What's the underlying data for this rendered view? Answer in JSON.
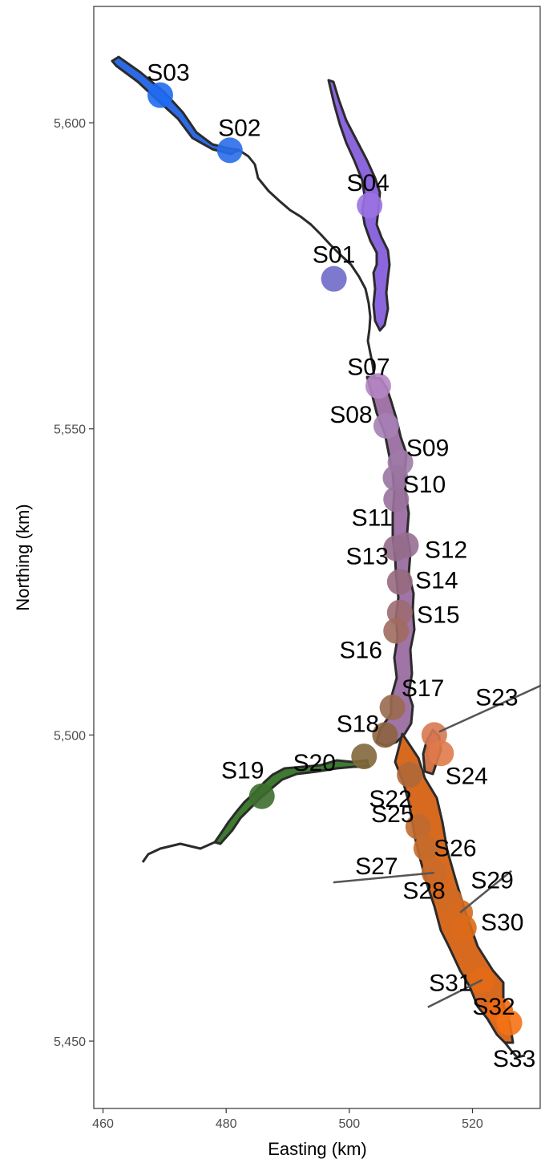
{
  "chart_data": {
    "type": "scatter",
    "xlabel": "Easting (km)",
    "ylabel": "Northing (km)",
    "xlim": [
      458.5,
      531
    ],
    "ylim": [
      5439,
      5619
    ],
    "x_ticks": [
      460,
      480,
      500,
      520
    ],
    "y_ticks": [
      5450,
      5500,
      5550,
      5600
    ],
    "y_tick_labels": [
      "5,450",
      "5,500",
      "5,550",
      "5,600"
    ],
    "grid": false,
    "legend": "none",
    "points": [
      {
        "label": "S01",
        "x": 497.5,
        "y": 5574.5,
        "color": "#6f6ac8"
      },
      {
        "label": "S02",
        "x": 480.6,
        "y": 5595.5,
        "color": "#2a6de8"
      },
      {
        "label": "S03",
        "x": 469.3,
        "y": 5604.5,
        "color": "#1f6cf0"
      },
      {
        "label": "S04",
        "x": 503.3,
        "y": 5586.5,
        "color": "#9b72e2"
      },
      {
        "label": "S07",
        "x": 504.7,
        "y": 5557.0,
        "color": "#b585c4"
      },
      {
        "label": "S08",
        "x": 506.0,
        "y": 5550.5,
        "color": "#a581b5"
      },
      {
        "label": "S09",
        "x": 508.3,
        "y": 5544.5,
        "color": "#9e7aa8"
      },
      {
        "label": "S10",
        "x": 507.5,
        "y": 5542.0,
        "color": "#9a76a2"
      },
      {
        "label": "S11",
        "x": 507.6,
        "y": 5538.5,
        "color": "#99729c"
      },
      {
        "label": "S12",
        "x": 509.2,
        "y": 5531.0,
        "color": "#976e90"
      },
      {
        "label": "S13",
        "x": 507.6,
        "y": 5530.5,
        "color": "#956b8c"
      },
      {
        "label": "S14",
        "x": 508.2,
        "y": 5525.0,
        "color": "#966c80"
      },
      {
        "label": "S15",
        "x": 508.2,
        "y": 5520.0,
        "color": "#9c6c70"
      },
      {
        "label": "S16",
        "x": 507.6,
        "y": 5517.0,
        "color": "#a06c60"
      },
      {
        "label": "S17",
        "x": 507.0,
        "y": 5504.5,
        "color": "#9a6a50"
      },
      {
        "label": "S18",
        "x": 505.8,
        "y": 5500.0,
        "color": "#8c6440"
      },
      {
        "label": "S19",
        "x": 485.8,
        "y": 5490.0,
        "color": "#3d6e2f"
      },
      {
        "label": "S20",
        "x": 502.4,
        "y": 5496.5,
        "color": "#82683c"
      },
      {
        "label": "S22",
        "x": 509.8,
        "y": 5493.5,
        "color": "#b06838"
      },
      {
        "label": "S23",
        "x": 513.8,
        "y": 5500.0,
        "color": "#d87850"
      },
      {
        "label": "S24",
        "x": 514.9,
        "y": 5497.0,
        "color": "#e07a4a"
      },
      {
        "label": "S25",
        "x": 511.2,
        "y": 5485.0,
        "color": "#c06a30"
      },
      {
        "label": "S26",
        "x": 512.5,
        "y": 5481.5,
        "color": "#c56c2c"
      },
      {
        "label": "S27",
        "x": 513.8,
        "y": 5477.5,
        "color": "#ca6c28"
      },
      {
        "label": "S28",
        "x": 516.3,
        "y": 5473.0,
        "color": "#d06a22"
      },
      {
        "label": "S29",
        "x": 518.0,
        "y": 5471.0,
        "color": "#d66a1e"
      },
      {
        "label": "S30",
        "x": 518.6,
        "y": 5468.5,
        "color": "#dc6a1a"
      },
      {
        "label": "S31",
        "x": 521.6,
        "y": 5460.0,
        "color": "#e46a16"
      },
      {
        "label": "S32",
        "x": 524.5,
        "y": 5455.0,
        "color": "#ee6a14"
      },
      {
        "label": "S33",
        "x": 526.0,
        "y": 5453.0,
        "color": "#f57214"
      }
    ]
  }
}
